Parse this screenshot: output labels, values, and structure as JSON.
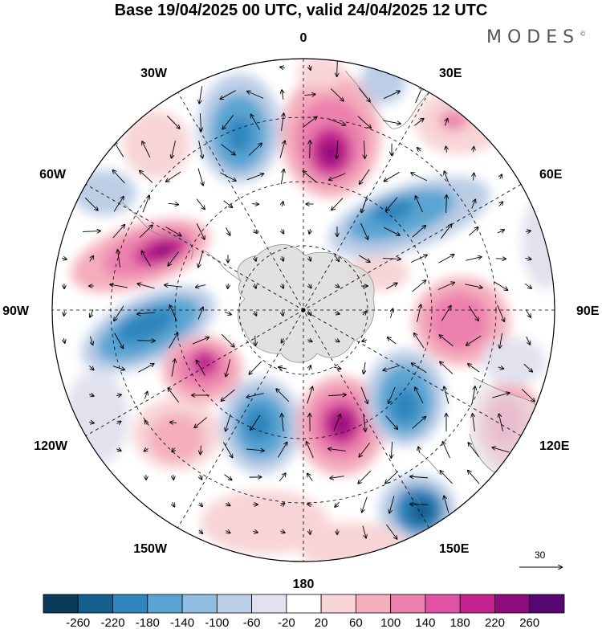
{
  "title": "Base 19/04/2025 00 UTC, valid 24/04/2025 12 UTC",
  "brand": {
    "name": "MODES",
    "mark": "©"
  },
  "longitude_labels": {
    "lon_0": "0",
    "lon_30E": "30E",
    "lon_60E": "60E",
    "lon_90E": "90E",
    "lon_120E": "120E",
    "lon_150E": "150E",
    "lon_180": "180",
    "lon_150W": "150W",
    "lon_120W": "120W",
    "lon_90W": "90W",
    "lon_60W": "60W",
    "lon_30W": "30W"
  },
  "vector_reference": {
    "value": "30"
  },
  "colorbar": {
    "labels": [
      "-260",
      "-220",
      "-180",
      "-140",
      "-100",
      "-60",
      "-20",
      "20",
      "60",
      "100",
      "140",
      "180",
      "220",
      "260"
    ],
    "colors": [
      "#0c3a5a",
      "#155f8f",
      "#2f86bd",
      "#5aa5d3",
      "#90bde0",
      "#bccde6",
      "#e2e2ef",
      "#ffffff",
      "#f8d4d6",
      "#f4aebd",
      "#ec80ae",
      "#e052a3",
      "#c4228f",
      "#8d0c7c",
      "#560670"
    ]
  },
  "map_colors": {
    "land": "#dcdcdc",
    "land_outline": "#888888",
    "grid": "#000000"
  }
}
